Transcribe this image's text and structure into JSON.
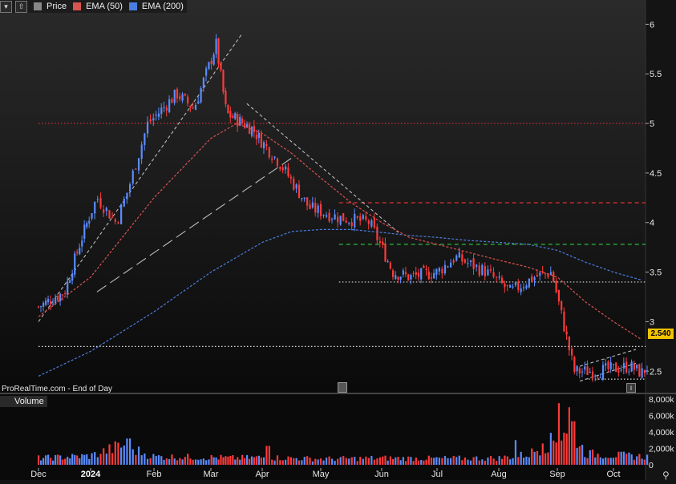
{
  "legend": {
    "price_label": "Price",
    "ema50_label": "EMA (50)",
    "ema200_label": "EMA (200)",
    "colors": {
      "up": "#5b8cff",
      "down": "#ff3a3a",
      "ema50": "#d9534f",
      "ema200": "#4a7de0"
    }
  },
  "footer_note": "ProRealTime.com - End of Day",
  "last_price": "2.540",
  "volume_label": "Volume",
  "chart_data": {
    "type": "candlestick",
    "x_tick_labels": [
      "Dec",
      "2024",
      "Feb",
      "Mar",
      "Apr",
      "May",
      "Jun",
      "Jul",
      "Aug",
      "Sep",
      "Oct"
    ],
    "y_tick_labels": [
      "6",
      "5.5",
      "5",
      "4.5",
      "4",
      "3.5",
      "3",
      "2.5"
    ],
    "ylim": [
      2.3,
      6.1
    ],
    "volume_tick_labels": [
      "8,000k",
      "6,000k",
      "4,000k",
      "2,000k",
      "0"
    ],
    "volume_ylim": [
      0,
      8000
    ],
    "close_path": [
      {
        "m": 0,
        "v": 3.15
      },
      {
        "m": 0.5,
        "v": 3.3
      },
      {
        "m": 0.8,
        "v": 3.8
      },
      {
        "m": 1.1,
        "v": 4.25
      },
      {
        "m": 1.4,
        "v": 4.0
      },
      {
        "m": 1.6,
        "v": 4.35
      },
      {
        "m": 1.9,
        "v": 5.0
      },
      {
        "m": 2.4,
        "v": 5.3
      },
      {
        "m": 2.7,
        "v": 5.15
      },
      {
        "m": 3.1,
        "v": 5.8
      },
      {
        "m": 3.3,
        "v": 5.1
      },
      {
        "m": 3.8,
        "v": 4.95
      },
      {
        "m": 4.3,
        "v": 4.6
      },
      {
        "m": 4.8,
        "v": 4.15
      },
      {
        "m": 5.3,
        "v": 4.05
      },
      {
        "m": 5.8,
        "v": 4.0
      },
      {
        "m": 6.2,
        "v": 3.5
      },
      {
        "m": 6.5,
        "v": 3.45
      },
      {
        "m": 7.0,
        "v": 3.5
      },
      {
        "m": 7.3,
        "v": 3.65
      },
      {
        "m": 7.8,
        "v": 3.5
      },
      {
        "m": 8.2,
        "v": 3.3
      },
      {
        "m": 8.6,
        "v": 3.45
      },
      {
        "m": 8.9,
        "v": 3.5
      },
      {
        "m": 9.1,
        "v": 3.0
      },
      {
        "m": 9.3,
        "v": 2.5
      },
      {
        "m": 9.7,
        "v": 2.5
      },
      {
        "m": 10.3,
        "v": 2.55
      },
      {
        "m": 10.5,
        "v": 2.48
      },
      {
        "m": 10.6,
        "v": 2.54
      }
    ],
    "ema50_path": [
      {
        "m": 0,
        "v": 3.05
      },
      {
        "m": 1,
        "v": 3.45
      },
      {
        "m": 2,
        "v": 4.25
      },
      {
        "m": 3,
        "v": 4.85
      },
      {
        "m": 3.5,
        "v": 5.0
      },
      {
        "m": 4,
        "v": 4.9
      },
      {
        "m": 4.5,
        "v": 4.7
      },
      {
        "m": 5,
        "v": 4.45
      },
      {
        "m": 5.5,
        "v": 4.2
      },
      {
        "m": 6,
        "v": 4.0
      },
      {
        "m": 6.5,
        "v": 3.85
      },
      {
        "m": 7,
        "v": 3.78
      },
      {
        "m": 7.5,
        "v": 3.7
      },
      {
        "m": 8,
        "v": 3.62
      },
      {
        "m": 8.5,
        "v": 3.55
      },
      {
        "m": 9,
        "v": 3.45
      },
      {
        "m": 9.5,
        "v": 3.2
      },
      {
        "m": 10,
        "v": 3.0
      },
      {
        "m": 10.5,
        "v": 2.82
      }
    ],
    "ema200_path": [
      {
        "m": 0,
        "v": 2.45
      },
      {
        "m": 1,
        "v": 2.7
      },
      {
        "m": 2,
        "v": 3.1
      },
      {
        "m": 3,
        "v": 3.5
      },
      {
        "m": 4,
        "v": 3.8
      },
      {
        "m": 4.5,
        "v": 3.91
      },
      {
        "m": 5,
        "v": 3.93
      },
      {
        "m": 5.5,
        "v": 3.93
      },
      {
        "m": 6,
        "v": 3.9
      },
      {
        "m": 6.5,
        "v": 3.87
      },
      {
        "m": 7,
        "v": 3.85
      },
      {
        "m": 7.5,
        "v": 3.82
      },
      {
        "m": 8,
        "v": 3.8
      },
      {
        "m": 8.5,
        "v": 3.78
      },
      {
        "m": 9,
        "v": 3.72
      },
      {
        "m": 9.5,
        "v": 3.6
      },
      {
        "m": 10,
        "v": 3.5
      },
      {
        "m": 10.5,
        "v": 3.42
      }
    ],
    "horizontal_levels": [
      {
        "v": 5.0,
        "color": "#e03030",
        "style": "dotted",
        "from_m": 0
      },
      {
        "v": 4.2,
        "color": "#e03030",
        "style": "dashed",
        "from_m": 5.3
      },
      {
        "v": 3.78,
        "color": "#2ecc40",
        "style": "dashed",
        "from_m": 5.3
      },
      {
        "v": 3.4,
        "color": "#dddddd",
        "style": "dotted",
        "from_m": 5.3
      },
      {
        "v": 2.75,
        "color": "#dddddd",
        "style": "dotted",
        "from_m": 0
      },
      {
        "v": 2.42,
        "color": "#dddddd",
        "style": "dotted",
        "from_m": 9.5
      }
    ],
    "trend_lines": [
      {
        "m1": 0,
        "v1": 3.0,
        "m2": 3.6,
        "v2": 5.9,
        "color": "#bbbbbb",
        "style": "dashed"
      },
      {
        "m1": 1.1,
        "v1": 3.3,
        "m2": 4.5,
        "v2": 4.65,
        "color": "#bbbbbb",
        "style": "longdash"
      },
      {
        "m1": 3.7,
        "v1": 5.2,
        "m2": 6.3,
        "v2": 3.9,
        "color": "#bbbbbb",
        "style": "dashed"
      },
      {
        "m1": 9.4,
        "v1": 2.4,
        "m2": 10.4,
        "v2": 2.58,
        "color": "#bbbbbb",
        "style": "dashed"
      },
      {
        "m1": 9.4,
        "v1": 2.55,
        "m2": 10.4,
        "v2": 2.72,
        "color": "#bbbbbb",
        "style": "dashed"
      }
    ],
    "volume_path": [
      {
        "m": 0,
        "v": 900
      },
      {
        "m": 1,
        "v": 1200
      },
      {
        "m": 1.5,
        "v": 2600
      },
      {
        "m": 2,
        "v": 1100
      },
      {
        "m": 3,
        "v": 1000
      },
      {
        "m": 3.5,
        "v": 900
      },
      {
        "m": 4,
        "v": 1000
      },
      {
        "m": 5,
        "v": 800
      },
      {
        "m": 6,
        "v": 900
      },
      {
        "m": 7,
        "v": 850
      },
      {
        "m": 8,
        "v": 900
      },
      {
        "m": 8.5,
        "v": 1400
      },
      {
        "m": 9,
        "v": 3500
      },
      {
        "m": 9.2,
        "v": 5500
      },
      {
        "m": 9.5,
        "v": 1500
      },
      {
        "m": 10,
        "v": 1300
      },
      {
        "m": 10.6,
        "v": 1100
      }
    ],
    "volume_spikes": [
      {
        "m": 9.03,
        "v": 7500
      },
      {
        "m": 9.2,
        "v": 7000
      },
      {
        "m": 9.28,
        "v": 5300
      },
      {
        "m": 1.6,
        "v": 3200
      },
      {
        "m": 8.3,
        "v": 3000
      },
      {
        "m": 8.75,
        "v": 2600
      },
      {
        "m": 4.1,
        "v": 2300
      }
    ]
  }
}
